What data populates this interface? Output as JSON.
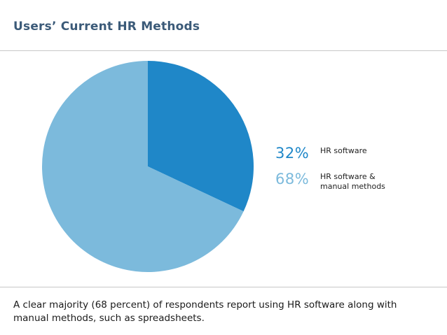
{
  "title": "Users’ Current HR Methods",
  "caption": "A clear majority (68 percent) of respondents report using HR software along with manual methods, such as spreadsheets.",
  "colors": {
    "accent_dark": "#1f87c8",
    "accent_light": "#7cbadc",
    "title": "#3b5a78",
    "rule": "#c8c8c8"
  },
  "chart_data": {
    "type": "pie",
    "title": "",
    "slices": [
      {
        "label": "HR software",
        "value": 32,
        "display": "32%",
        "color": "#1f87c8"
      },
      {
        "label": "HR software & manual methods",
        "value": 68,
        "display": "68%",
        "color": "#7cbadc"
      }
    ],
    "start": "12 o'clock",
    "direction": "clockwise",
    "legend": {
      "placement": "right",
      "items": [
        {
          "pct": "32%",
          "label": "HR software",
          "color": "#1f87c8"
        },
        {
          "pct": "68%",
          "label": "HR software & manual methods",
          "color": "#7cbadc"
        }
      ]
    }
  }
}
